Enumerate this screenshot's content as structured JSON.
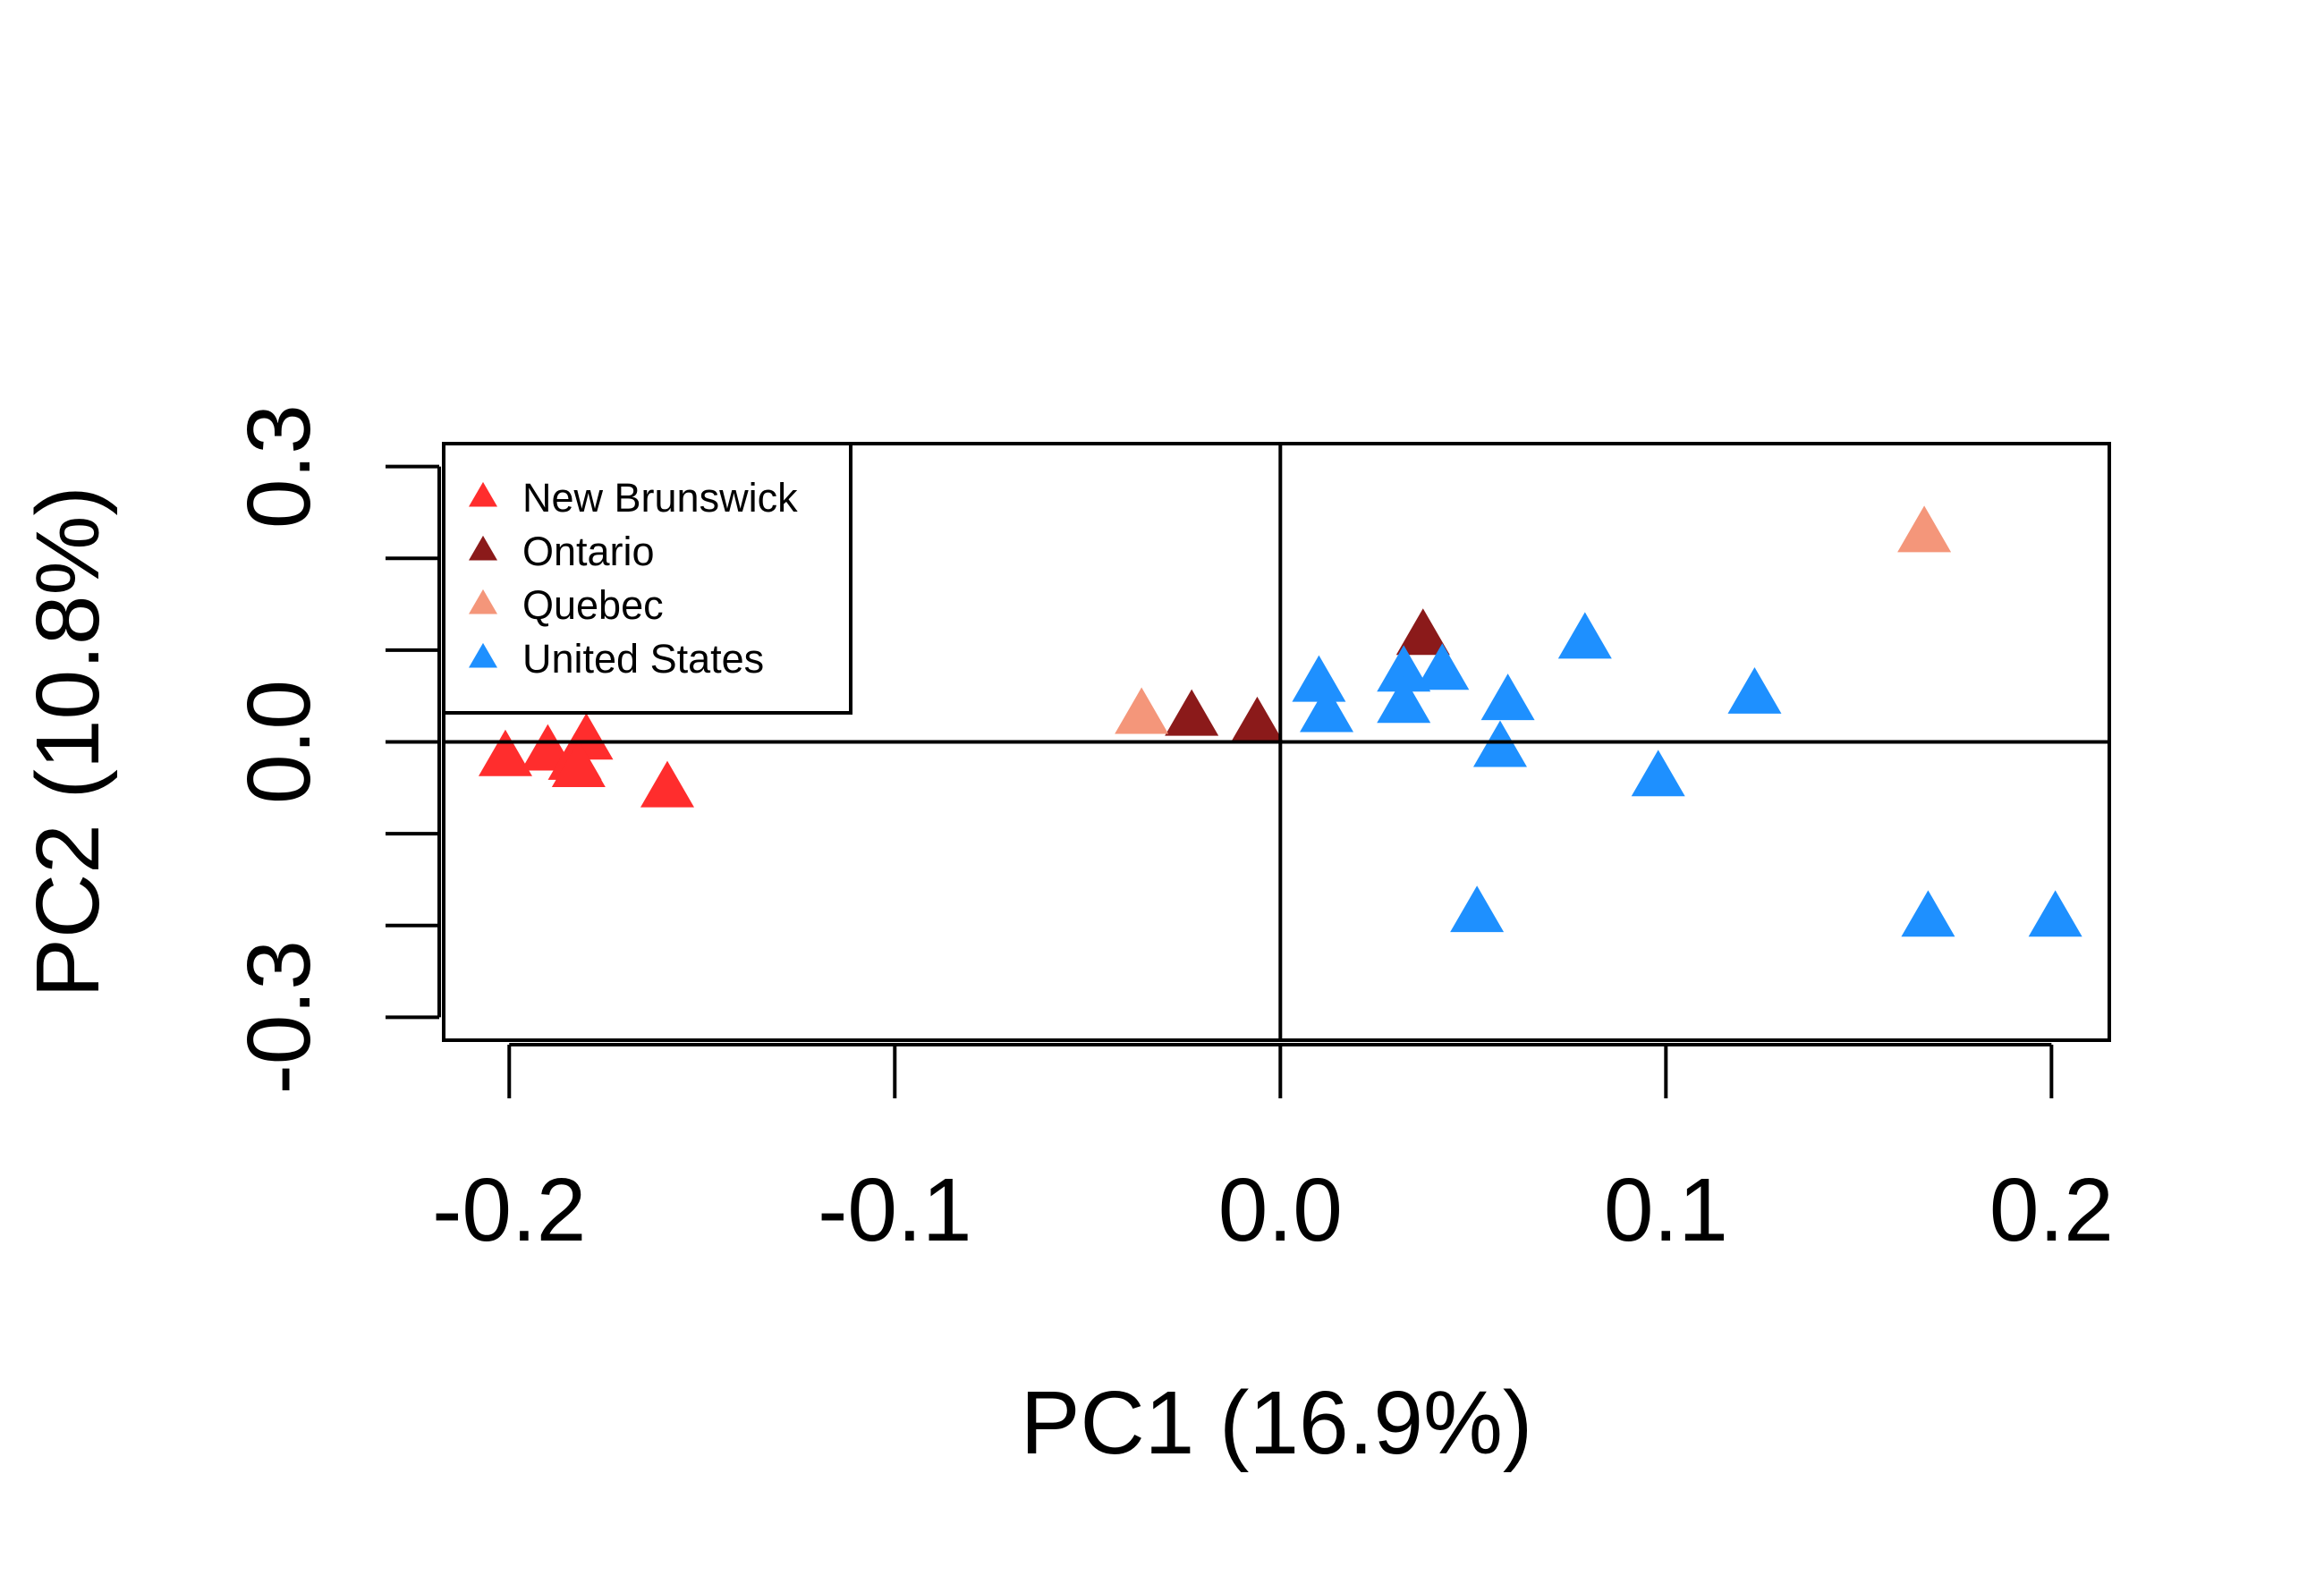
{
  "chart_data": {
    "type": "scatter",
    "title": "",
    "xlabel": "PC1 (16.9%)",
    "ylabel": "PC2 (10.8%)",
    "xlim": [
      -0.217,
      0.215
    ],
    "ylim": [
      -0.325,
      0.325
    ],
    "xticks": [
      -0.2,
      -0.1,
      0.0,
      0.1,
      0.2
    ],
    "xtick_labels": [
      "-0.2",
      "-0.1",
      "0.0",
      "0.1",
      "0.2"
    ],
    "yticks": [
      -0.3,
      -0.2,
      -0.1,
      0.0,
      0.1,
      0.2,
      0.3
    ],
    "ytick_labels": [
      "-0.3",
      "",
      "",
      "0.0",
      "",
      "",
      "0.3"
    ],
    "reference_lines": {
      "x": 0,
      "y": 0
    },
    "grid": false,
    "marker": "triangle",
    "legend_position": "top-left",
    "series": [
      {
        "name": "New Brunswick",
        "color": "#FF2D2D",
        "points": [
          [
            -0.201,
            -0.018
          ],
          [
            -0.19,
            -0.012
          ],
          [
            -0.18,
            0.0
          ],
          [
            -0.183,
            -0.022
          ],
          [
            -0.182,
            -0.03
          ],
          [
            -0.159,
            -0.052
          ]
        ]
      },
      {
        "name": "Ontario",
        "color": "#8B1A1A",
        "points": [
          [
            -0.023,
            0.026
          ],
          [
            -0.006,
            0.018
          ],
          [
            0.037,
            0.114
          ]
        ]
      },
      {
        "name": "Quebec",
        "color": "#F4967A",
        "points": [
          [
            -0.036,
            0.028
          ],
          [
            0.167,
            0.226
          ]
        ]
      },
      {
        "name": "United States",
        "color": "#1E90FF",
        "points": [
          [
            0.01,
            0.063
          ],
          [
            0.012,
            0.03
          ],
          [
            0.032,
            0.074
          ],
          [
            0.032,
            0.04
          ],
          [
            0.042,
            0.076
          ],
          [
            0.059,
            0.043
          ],
          [
            0.057,
            -0.008
          ],
          [
            0.079,
            0.11
          ],
          [
            0.123,
            0.05
          ],
          [
            0.098,
            -0.04
          ],
          [
            0.051,
            -0.188
          ],
          [
            0.168,
            -0.193
          ],
          [
            0.201,
            -0.193
          ]
        ]
      }
    ]
  }
}
